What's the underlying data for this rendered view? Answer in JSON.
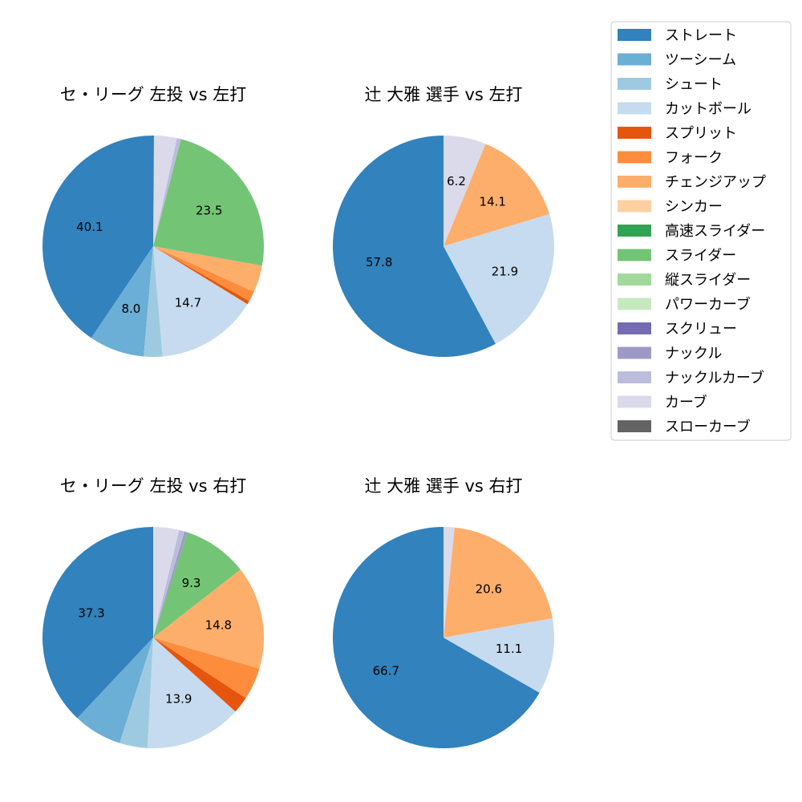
{
  "legend": {
    "items": [
      {
        "label": "ストレート",
        "color": "#3182bd"
      },
      {
        "label": "ツーシーム",
        "color": "#6baed6"
      },
      {
        "label": "シュート",
        "color": "#9ecae1"
      },
      {
        "label": "カットボール",
        "color": "#c6dbef"
      },
      {
        "label": "スプリット",
        "color": "#e6550d"
      },
      {
        "label": "フォーク",
        "color": "#fd8d3c"
      },
      {
        "label": "チェンジアップ",
        "color": "#fdae6b"
      },
      {
        "label": "シンカー",
        "color": "#fdd0a2"
      },
      {
        "label": "高速スライダー",
        "color": "#31a354"
      },
      {
        "label": "スライダー",
        "color": "#74c476"
      },
      {
        "label": "縦スライダー",
        "color": "#a1d99b"
      },
      {
        "label": "パワーカーブ",
        "color": "#c7e9c0"
      },
      {
        "label": "スクリュー",
        "color": "#756bb1"
      },
      {
        "label": "ナックル",
        "color": "#9e9ac8"
      },
      {
        "label": "ナックルカーブ",
        "color": "#bcbddc"
      },
      {
        "label": "カーブ",
        "color": "#dadaeb"
      },
      {
        "label": "スローカーブ",
        "color": "#636363"
      }
    ]
  },
  "chart_data": [
    {
      "type": "pie",
      "title": "セ・リーグ 左投 vs 左打",
      "slices": [
        {
          "label": "ストレート",
          "value": 40.1,
          "color": "#3182bd",
          "show_label": true
        },
        {
          "label": "ツーシーム",
          "value": 8.0,
          "color": "#6baed6",
          "show_label": true
        },
        {
          "label": "シュート",
          "value": 2.7,
          "color": "#9ecae1",
          "show_label": false
        },
        {
          "label": "カットボール",
          "value": 14.7,
          "color": "#c6dbef",
          "show_label": true
        },
        {
          "label": "スプリット",
          "value": 0.5,
          "color": "#e6550d",
          "show_label": false
        },
        {
          "label": "フォーク",
          "value": 1.5,
          "color": "#fd8d3c",
          "show_label": false
        },
        {
          "label": "チェンジアップ",
          "value": 3.9,
          "color": "#fdae6b",
          "show_label": false
        },
        {
          "label": "スライダー",
          "value": 23.5,
          "color": "#74c476",
          "show_label": true
        },
        {
          "label": "ナックルカーブ",
          "value": 0.6,
          "color": "#bcbddc",
          "show_label": false
        },
        {
          "label": "カーブ",
          "value": 3.3,
          "color": "#dadaeb",
          "show_label": false
        },
        {
          "label": "スローカーブ",
          "value": 0.1,
          "color": "#636363",
          "show_label": false
        }
      ]
    },
    {
      "type": "pie",
      "title": "辻 大雅 選手 vs 左打",
      "slices": [
        {
          "label": "ストレート",
          "value": 57.8,
          "color": "#3182bd",
          "show_label": true
        },
        {
          "label": "カットボール",
          "value": 21.9,
          "color": "#c6dbef",
          "show_label": true
        },
        {
          "label": "チェンジアップ",
          "value": 14.1,
          "color": "#fdae6b",
          "show_label": true
        },
        {
          "label": "カーブ",
          "value": 6.2,
          "color": "#dadaeb",
          "show_label": true
        }
      ]
    },
    {
      "type": "pie",
      "title": "セ・リーグ 左投 vs 右打",
      "slices": [
        {
          "label": "ストレート",
          "value": 37.3,
          "color": "#3182bd",
          "show_label": true
        },
        {
          "label": "ツーシーム",
          "value": 7.0,
          "color": "#6baed6",
          "show_label": false
        },
        {
          "label": "シュート",
          "value": 4.0,
          "color": "#9ecae1",
          "show_label": false
        },
        {
          "label": "カットボール",
          "value": 13.9,
          "color": "#c6dbef",
          "show_label": true
        },
        {
          "label": "スプリット",
          "value": 2.4,
          "color": "#e6550d",
          "show_label": false
        },
        {
          "label": "フォーク",
          "value": 4.6,
          "color": "#fd8d3c",
          "show_label": false
        },
        {
          "label": "チェンジアップ",
          "value": 14.8,
          "color": "#fdae6b",
          "show_label": true
        },
        {
          "label": "スライダー",
          "value": 9.3,
          "color": "#74c476",
          "show_label": true
        },
        {
          "label": "ナックル",
          "value": 0.4,
          "color": "#9e9ac8",
          "show_label": false
        },
        {
          "label": "ナックルカーブ",
          "value": 0.8,
          "color": "#bcbddc",
          "show_label": false
        },
        {
          "label": "カーブ",
          "value": 3.7,
          "color": "#dadaeb",
          "show_label": false
        }
      ]
    },
    {
      "type": "pie",
      "title": "辻 大雅 選手 vs 右打",
      "slices": [
        {
          "label": "ストレート",
          "value": 66.7,
          "color": "#3182bd",
          "show_label": true
        },
        {
          "label": "カットボール",
          "value": 11.1,
          "color": "#c6dbef",
          "show_label": true
        },
        {
          "label": "チェンジアップ",
          "value": 20.6,
          "color": "#fdae6b",
          "show_label": true
        },
        {
          "label": "カーブ",
          "value": 1.6,
          "color": "#dadaeb",
          "show_label": false
        }
      ]
    }
  ]
}
